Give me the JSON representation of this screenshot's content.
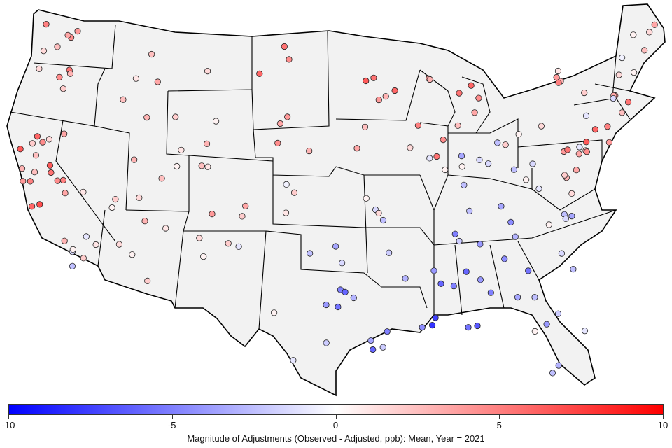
{
  "map": {
    "land_color": "#f2f2f2",
    "border_color": "#000000",
    "marker_outline": "#222222",
    "scale": {
      "min": -10,
      "max": 10,
      "low_color": "#0000ff",
      "mid_color": "#ffffff",
      "high_color": "#ff0000"
    },
    "sites": [
      {
        "region": "WA",
        "value": 4.5
      },
      {
        "region": "WA",
        "value": 5.0
      },
      {
        "region": "WA",
        "value": 3.5
      },
      {
        "region": "WA",
        "value": 1.5
      },
      {
        "region": "WA",
        "value": 4.0
      },
      {
        "region": "WA",
        "value": 2.5
      },
      {
        "region": "OR",
        "value": 5.5
      },
      {
        "region": "OR",
        "value": 4.5
      },
      {
        "region": "OR",
        "value": 3.0
      },
      {
        "region": "OR",
        "value": 2.0
      },
      {
        "region": "OR",
        "value": 1.5
      },
      {
        "region": "CA-North",
        "value": 5.0
      },
      {
        "region": "CA-North",
        "value": 6.5
      },
      {
        "region": "CA-North",
        "value": 3.5
      },
      {
        "region": "CA-North",
        "value": 2.5
      },
      {
        "region": "CA-North",
        "value": 1.5
      },
      {
        "region": "CA-North",
        "value": 4.0
      },
      {
        "region": "CA-North",
        "value": 6.0
      },
      {
        "region": "CA-North",
        "value": 4.5
      },
      {
        "region": "CA-North",
        "value": 3.0
      },
      {
        "region": "CA-North",
        "value": 2.0
      },
      {
        "region": "CA-Central",
        "value": 6.0
      },
      {
        "region": "CA-Central",
        "value": 7.0
      },
      {
        "region": "CA-Central",
        "value": 5.5
      },
      {
        "region": "CA-Central",
        "value": 4.5
      },
      {
        "region": "CA-Central",
        "value": 3.5
      },
      {
        "region": "CA-Central",
        "value": 2.5
      },
      {
        "region": "CA-Central",
        "value": 6.5
      },
      {
        "region": "CA-Central",
        "value": 5.0
      },
      {
        "region": "CA-South",
        "value": 2.0
      },
      {
        "region": "CA-South",
        "value": 1.0
      },
      {
        "region": "CA-South",
        "value": -1.5
      },
      {
        "region": "CA-South",
        "value": -2.5
      },
      {
        "region": "CA-South",
        "value": 0.5
      },
      {
        "region": "CA-South",
        "value": 3.0
      },
      {
        "region": "CA-South",
        "value": -1.0
      },
      {
        "region": "NV",
        "value": 1.0
      },
      {
        "region": "NV",
        "value": 0.5
      },
      {
        "region": "NV",
        "value": 2.0
      },
      {
        "region": "ID",
        "value": 3.0
      },
      {
        "region": "ID",
        "value": 1.0
      },
      {
        "region": "ID",
        "value": 2.5
      },
      {
        "region": "MT",
        "value": 2.5
      },
      {
        "region": "MT",
        "value": 1.5
      },
      {
        "region": "MT",
        "value": 3.5
      },
      {
        "region": "WY",
        "value": 2.0
      },
      {
        "region": "WY",
        "value": 0.5
      },
      {
        "region": "WY",
        "value": 1.0
      },
      {
        "region": "WY",
        "value": 3.0
      },
      {
        "region": "UT",
        "value": 2.5
      },
      {
        "region": "UT",
        "value": 1.5
      },
      {
        "region": "UT",
        "value": 0.5
      },
      {
        "region": "UT",
        "value": 3.0
      },
      {
        "region": "CO",
        "value": 3.5
      },
      {
        "region": "CO",
        "value": 2.0
      },
      {
        "region": "CO",
        "value": 4.0
      },
      {
        "region": "CO",
        "value": 1.0
      },
      {
        "region": "CO",
        "value": 2.5
      },
      {
        "region": "AZ",
        "value": 2.0
      },
      {
        "region": "AZ",
        "value": 1.0
      },
      {
        "region": "AZ",
        "value": 3.0
      },
      {
        "region": "AZ",
        "value": 0.5
      },
      {
        "region": "AZ",
        "value": 1.5
      },
      {
        "region": "NM",
        "value": 0.5
      },
      {
        "region": "NM",
        "value": -1.0
      },
      {
        "region": "NM",
        "value": 1.5
      },
      {
        "region": "NM",
        "value": 2.0
      },
      {
        "region": "ND",
        "value": 5.5
      },
      {
        "region": "ND",
        "value": 4.5
      },
      {
        "region": "ND",
        "value": 6.0
      },
      {
        "region": "SD",
        "value": 4.0
      },
      {
        "region": "SD",
        "value": 3.5
      },
      {
        "region": "NE",
        "value": 3.0
      },
      {
        "region": "NE",
        "value": 4.5
      },
      {
        "region": "KS",
        "value": 1.0
      },
      {
        "region": "KS",
        "value": -0.5
      },
      {
        "region": "KS",
        "value": 2.0
      },
      {
        "region": "OK",
        "value": -2.5
      },
      {
        "region": "OK",
        "value": -3.5
      },
      {
        "region": "OK",
        "value": -1.5
      },
      {
        "region": "TX-Dallas",
        "value": -5.0
      },
      {
        "region": "TX-Dallas",
        "value": -4.0
      },
      {
        "region": "TX-Dallas",
        "value": -6.0
      },
      {
        "region": "TX-Dallas",
        "value": -3.0
      },
      {
        "region": "TX-Dallas",
        "value": -5.5
      },
      {
        "region": "TX-Houston",
        "value": -5.0
      },
      {
        "region": "TX-Houston",
        "value": -3.5
      },
      {
        "region": "TX-Houston",
        "value": -2.0
      },
      {
        "region": "TX-Houston",
        "value": -6.0
      },
      {
        "region": "TX-West",
        "value": -1.0
      },
      {
        "region": "TX-West",
        "value": 0.5
      },
      {
        "region": "TX-West",
        "value": -2.0
      },
      {
        "region": "MN",
        "value": 5.5
      },
      {
        "region": "MN",
        "value": 4.0
      },
      {
        "region": "MN",
        "value": 6.5
      },
      {
        "region": "MN",
        "value": 3.0
      },
      {
        "region": "WI",
        "value": 6.0
      },
      {
        "region": "WI",
        "value": 5.0
      },
      {
        "region": "WI",
        "value": 4.0
      },
      {
        "region": "WI",
        "value": 3.0
      },
      {
        "region": "IA",
        "value": 3.5
      },
      {
        "region": "IA",
        "value": 2.5
      },
      {
        "region": "IA",
        "value": 1.5
      },
      {
        "region": "MO",
        "value": 0.5
      },
      {
        "region": "MO",
        "value": -1.5
      },
      {
        "region": "MO",
        "value": 1.5
      },
      {
        "region": "MO",
        "value": -2.5
      },
      {
        "region": "IL",
        "value": 5.5
      },
      {
        "region": "IL",
        "value": 4.5
      },
      {
        "region": "IL",
        "value": -1.0
      },
      {
        "region": "IL",
        "value": 0.5
      },
      {
        "region": "MI",
        "value": 5.5
      },
      {
        "region": "MI",
        "value": 4.5
      },
      {
        "region": "MI",
        "value": 3.5
      },
      {
        "region": "MI",
        "value": 6.0
      },
      {
        "region": "MI",
        "value": 2.5
      },
      {
        "region": "IN",
        "value": -2.5
      },
      {
        "region": "IN",
        "value": -1.5
      },
      {
        "region": "IN",
        "value": 0.5
      },
      {
        "region": "IN",
        "value": -3.5
      },
      {
        "region": "OH",
        "value": -1.5
      },
      {
        "region": "OH",
        "value": 0.5
      },
      {
        "region": "OH",
        "value": 2.0
      },
      {
        "region": "OH",
        "value": -2.5
      },
      {
        "region": "KY",
        "value": -3.5
      },
      {
        "region": "KY",
        "value": -2.5
      },
      {
        "region": "KY",
        "value": -4.5
      },
      {
        "region": "TN",
        "value": -4.0
      },
      {
        "region": "TN",
        "value": -3.0
      },
      {
        "region": "TN",
        "value": -5.0
      },
      {
        "region": "TN",
        "value": -2.0
      },
      {
        "region": "AR",
        "value": -3.0
      },
      {
        "region": "AR",
        "value": -2.0
      },
      {
        "region": "LA",
        "value": -7.5
      },
      {
        "region": "LA",
        "value": -6.5
      },
      {
        "region": "LA",
        "value": -5.5
      },
      {
        "region": "LA",
        "value": -8.0
      },
      {
        "region": "LA",
        "value": -4.5
      },
      {
        "region": "MS",
        "value": -5.0
      },
      {
        "region": "MS",
        "value": -4.0
      },
      {
        "region": "MS",
        "value": -6.0
      },
      {
        "region": "AL",
        "value": -6.0
      },
      {
        "region": "AL",
        "value": -5.0
      },
      {
        "region": "AL",
        "value": -4.0
      },
      {
        "region": "GA",
        "value": -5.5
      },
      {
        "region": "GA",
        "value": -4.5
      },
      {
        "region": "GA",
        "value": -3.5
      },
      {
        "region": "GA",
        "value": -2.5
      },
      {
        "region": "FL",
        "value": -3.0
      },
      {
        "region": "FL",
        "value": -2.0
      },
      {
        "region": "FL",
        "value": -1.0
      },
      {
        "region": "FL",
        "value": -4.0
      },
      {
        "region": "FL",
        "value": 0.5
      },
      {
        "region": "FL",
        "value": -2.5
      },
      {
        "region": "SC",
        "value": -2.5
      },
      {
        "region": "SC",
        "value": -1.5
      },
      {
        "region": "NC",
        "value": -2.5
      },
      {
        "region": "NC",
        "value": -1.5
      },
      {
        "region": "NC",
        "value": 0.5
      },
      {
        "region": "NC",
        "value": -3.5
      },
      {
        "region": "VA",
        "value": 1.5
      },
      {
        "region": "VA",
        "value": 3.0
      },
      {
        "region": "VA",
        "value": -1.0
      },
      {
        "region": "VA",
        "value": 2.0
      },
      {
        "region": "WV",
        "value": -1.5
      },
      {
        "region": "WV",
        "value": -2.5
      },
      {
        "region": "WV",
        "value": 0.5
      },
      {
        "region": "PA",
        "value": 2.5
      },
      {
        "region": "PA",
        "value": 1.5
      },
      {
        "region": "PA",
        "value": 3.5
      },
      {
        "region": "PA",
        "value": -1.0
      },
      {
        "region": "PA",
        "value": 4.0
      },
      {
        "region": "MD-DC",
        "value": 5.5
      },
      {
        "region": "MD-DC",
        "value": 6.5
      },
      {
        "region": "MD-DC",
        "value": 4.5
      },
      {
        "region": "MD-DC",
        "value": 3.5
      },
      {
        "region": "NJ",
        "value": 5.0
      },
      {
        "region": "NJ",
        "value": 4.0
      },
      {
        "region": "NJ",
        "value": 6.0
      },
      {
        "region": "NY",
        "value": 3.0
      },
      {
        "region": "NY",
        "value": 4.0
      },
      {
        "region": "NY",
        "value": 2.0
      },
      {
        "region": "NY",
        "value": -1.0
      },
      {
        "region": "NY",
        "value": 5.0
      },
      {
        "region": "NY",
        "value": 1.0
      },
      {
        "region": "CT-RI-MA",
        "value": 4.5
      },
      {
        "region": "CT-RI-MA",
        "value": 3.5
      },
      {
        "region": "CT-RI-MA",
        "value": -1.5
      },
      {
        "region": "CT-RI-MA",
        "value": 2.5
      },
      {
        "region": "CT-RI-MA",
        "value": 5.5
      },
      {
        "region": "VT-NH",
        "value": 0.5
      },
      {
        "region": "VT-NH",
        "value": 1.5
      },
      {
        "region": "VT-NH",
        "value": -0.5
      },
      {
        "region": "ME",
        "value": 3.5
      },
      {
        "region": "ME",
        "value": 1.5
      },
      {
        "region": "ME",
        "value": 2.5
      },
      {
        "region": "ME",
        "value": 0.5
      }
    ]
  },
  "colorbar": {
    "ticks": [
      "-10",
      "-5",
      "0",
      "5",
      "10"
    ],
    "title": "Magnitude of Adjustments (Observed - Adjusted, ppb): Mean, Year = 2021"
  }
}
